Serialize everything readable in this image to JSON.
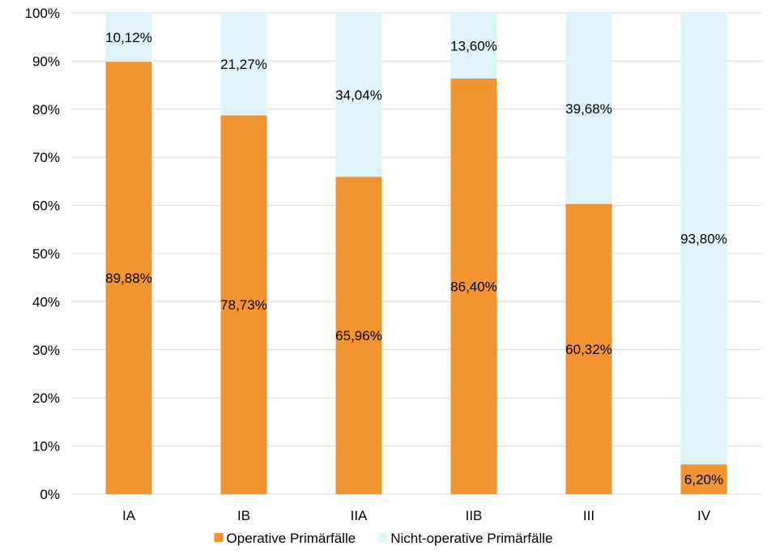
{
  "chart_data": {
    "type": "bar",
    "stacked": true,
    "percent_stacked": true,
    "categories": [
      "IA",
      "IB",
      "IIA",
      "IIB",
      "III",
      "IV"
    ],
    "series": [
      {
        "name": "Operative Primärfälle",
        "color": "#f29530",
        "values": [
          89.88,
          78.73,
          65.96,
          86.4,
          60.32,
          6.2
        ],
        "labels": [
          "89,88%",
          "78,73%",
          "65,96%",
          "86,40%",
          "60,32%",
          "6,20%"
        ]
      },
      {
        "name": "Nicht-operative Primärfälle",
        "color": "#dff3fb",
        "values": [
          10.12,
          21.27,
          34.04,
          13.6,
          39.68,
          93.8
        ],
        "labels": [
          "10,12%",
          "21,27%",
          "34,04%",
          "13,60%",
          "39,68%",
          "93,80%"
        ]
      }
    ],
    "ylim": [
      0,
      100
    ],
    "yticks": [
      "0%",
      "10%",
      "20%",
      "30%",
      "40%",
      "50%",
      "60%",
      "70%",
      "80%",
      "90%",
      "100%"
    ],
    "grid": true,
    "legend_position": "bottom"
  }
}
